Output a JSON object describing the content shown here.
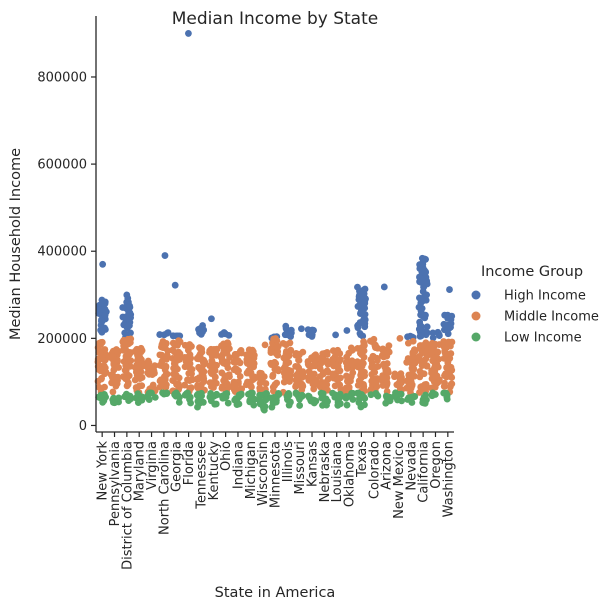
{
  "chart_data": {
    "type": "strip",
    "title": "Median Income by State",
    "xlabel": "State in America",
    "ylabel": "Median Household Income",
    "ylim": [
      -15000,
      940000
    ],
    "yticks": [
      0,
      200000,
      400000,
      600000,
      800000
    ],
    "categories": [
      "New York",
      "Pennsylvania",
      "District of Columbia",
      "Maryland",
      "Virginia",
      "North Carolina",
      "Georgia",
      "Florida",
      "Tennessee",
      "Kentucky",
      "Ohio",
      "Indiana",
      "Michigan",
      "Wisconsin",
      "Minnesota",
      "Illinois",
      "Missouri",
      "Kansas",
      "Nebraska",
      "Louisiana",
      "Oklahoma",
      "Texas",
      "Colorado",
      "Arizona",
      "New Mexico",
      "Nevada",
      "California",
      "Oregon",
      "Washington"
    ],
    "legend": {
      "title": "Income Group",
      "placement": "right"
    },
    "series": [
      {
        "name": "High Income",
        "color": "#4c72b0",
        "ranges": [
          [
            200000,
            290000
          ],
          [
            0,
            0
          ],
          [
            200000,
            300000
          ],
          [
            0,
            0
          ],
          [
            0,
            0
          ],
          [
            205000,
            215000
          ],
          [
            200000,
            208000
          ],
          [
            0,
            0
          ],
          [
            205000,
            230000
          ],
          [
            0,
            0
          ],
          [
            205000,
            215000
          ],
          [
            0,
            0
          ],
          [
            0,
            0
          ],
          [
            0,
            0
          ],
          [
            200000,
            205000
          ],
          [
            200000,
            230000
          ],
          [
            0,
            0
          ],
          [
            200000,
            225000
          ],
          [
            0,
            0
          ],
          [
            0,
            0
          ],
          [
            0,
            0
          ],
          [
            200000,
            320000
          ],
          [
            0,
            0
          ],
          [
            0,
            0
          ],
          [
            0,
            0
          ],
          [
            200000,
            206000
          ],
          [
            200000,
            385000
          ],
          [
            200000,
            215000
          ],
          [
            200000,
            255000
          ]
        ],
        "outliers": [
          [
            0,
            370000
          ],
          [
            5,
            390000
          ],
          [
            6,
            322000
          ],
          [
            7,
            900000
          ],
          [
            9,
            245000
          ],
          [
            16,
            222000
          ],
          [
            19,
            208000
          ],
          [
            20,
            218000
          ],
          [
            23,
            318000
          ],
          [
            28,
            312000
          ]
        ]
      },
      {
        "name": "Middle Income",
        "color": "#dd8452",
        "ranges": [
          [
            75000,
            195000
          ],
          [
            75000,
            180000
          ],
          [
            75000,
            200000
          ],
          [
            75000,
            180000
          ],
          [
            75000,
            155000
          ],
          [
            75000,
            195000
          ],
          [
            75000,
            195000
          ],
          [
            75000,
            190000
          ],
          [
            75000,
            185000
          ],
          [
            75000,
            178000
          ],
          [
            75000,
            195000
          ],
          [
            75000,
            178000
          ],
          [
            75000,
            175000
          ],
          [
            75000,
            120000
          ],
          [
            75000,
            200000
          ],
          [
            75000,
            190000
          ],
          [
            75000,
            170000
          ],
          [
            75000,
            165000
          ],
          [
            75000,
            170000
          ],
          [
            75000,
            175000
          ],
          [
            75000,
            180000
          ],
          [
            75000,
            195000
          ],
          [
            75000,
            195000
          ],
          [
            75000,
            185000
          ],
          [
            75000,
            120000
          ],
          [
            75000,
            195000
          ],
          [
            75000,
            195000
          ],
          [
            75000,
            190000
          ],
          [
            75000,
            195000
          ]
        ],
        "outliers": [
          [
            7,
            182000
          ],
          [
            13,
            185000
          ],
          [
            22,
            198000
          ],
          [
            24,
            200000
          ]
        ]
      },
      {
        "name": "Low Income",
        "color": "#55a868",
        "ranges": [
          [
            50000,
            75000
          ],
          [
            48000,
            75000
          ],
          [
            55000,
            75000
          ],
          [
            50000,
            75000
          ],
          [
            52000,
            75000
          ],
          [
            65000,
            75000
          ],
          [
            52000,
            75000
          ],
          [
            48000,
            75000
          ],
          [
            35000,
            75000
          ],
          [
            45000,
            75000
          ],
          [
            50000,
            75000
          ],
          [
            45000,
            75000
          ],
          [
            45000,
            75000
          ],
          [
            30000,
            75000
          ],
          [
            38000,
            75000
          ],
          [
            45000,
            75000
          ],
          [
            45000,
            75000
          ],
          [
            45000,
            75000
          ],
          [
            45000,
            75000
          ],
          [
            45000,
            75000
          ],
          [
            45000,
            75000
          ],
          [
            42000,
            75000
          ],
          [
            65000,
            75000
          ],
          [
            48000,
            75000
          ],
          [
            48000,
            75000
          ],
          [
            45000,
            75000
          ],
          [
            45000,
            75000
          ],
          [
            68000,
            75000
          ],
          [
            60000,
            75000
          ]
        ],
        "outliers": []
      }
    ]
  }
}
